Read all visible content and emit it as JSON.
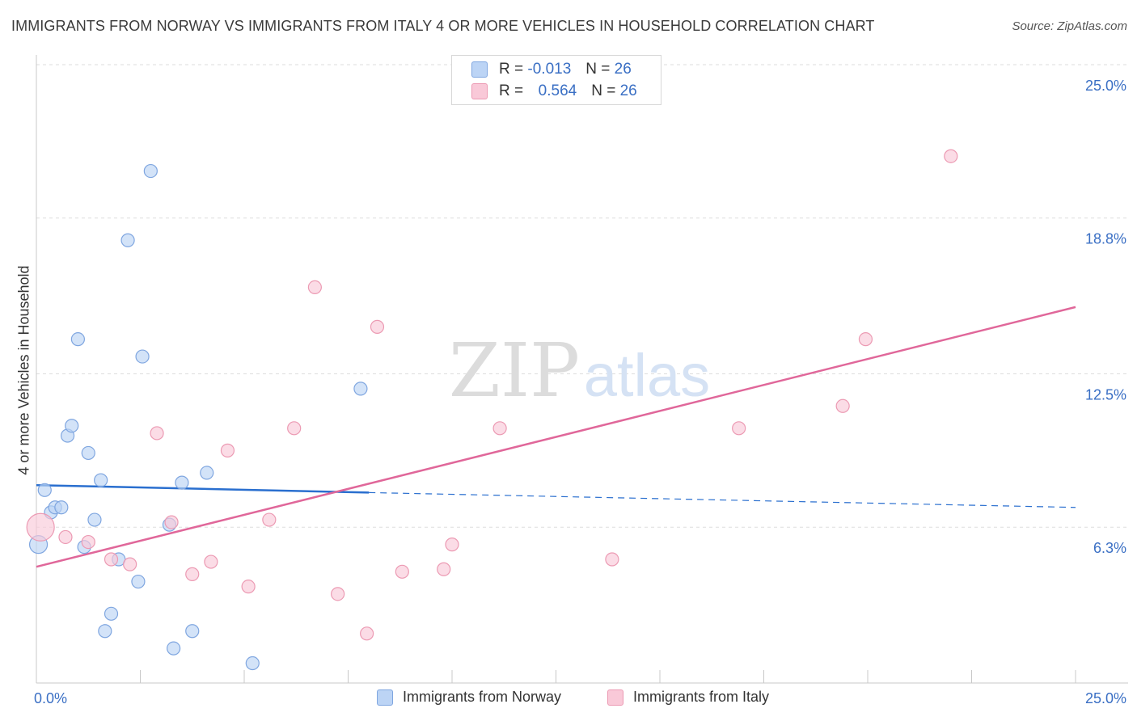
{
  "header": {
    "title": "IMMIGRANTS FROM NORWAY VS IMMIGRANTS FROM ITALY 4 OR MORE VEHICLES IN HOUSEHOLD CORRELATION CHART",
    "source": "Source: ZipAtlas.com"
  },
  "watermark": {
    "zip": "ZIP",
    "atlas": "atlas"
  },
  "stats": {
    "norway": {
      "r_label": "R =",
      "r_value": "-0.013",
      "n_label": "N =",
      "n_value": "26"
    },
    "italy": {
      "r_label": "R =",
      "r_value": "0.564",
      "n_label": "N =",
      "n_value": "26"
    }
  },
  "legend": {
    "norway": "Immigrants from Norway",
    "italy": "Immigrants from Italy"
  },
  "colors": {
    "norway_fill": "#bcd4f5",
    "norway_stroke": "#7fa6e0",
    "norway_line": "#2a6fcf",
    "italy_fill": "#f9c9d8",
    "italy_stroke": "#ec9ab3",
    "italy_line": "#e0679a",
    "axis_text": "#3a6fc4",
    "grid": "#dddddd"
  },
  "chart_data": {
    "type": "scatter",
    "title": "IMMIGRANTS FROM NORWAY VS IMMIGRANTS FROM ITALY 4 OR MORE VEHICLES IN HOUSEHOLD CORRELATION CHART",
    "xlabel": "",
    "ylabel": "4 or more Vehicles in Household",
    "xlim": [
      0,
      25
    ],
    "ylim": [
      0,
      25
    ],
    "x_tick_labels": [
      {
        "value": 0,
        "label": "0.0%"
      },
      {
        "value": 25,
        "label": "25.0%"
      }
    ],
    "y_ticks": [
      {
        "value": 6.3,
        "label": "6.3%"
      },
      {
        "value": 12.5,
        "label": "12.5%"
      },
      {
        "value": 18.8,
        "label": "18.8%"
      },
      {
        "value": 25.0,
        "label": "25.0%"
      }
    ],
    "grid": true,
    "series": [
      {
        "name": "Immigrants from Norway",
        "points": [
          {
            "x": 0.05,
            "y": 5.6
          },
          {
            "x": 0.2,
            "y": 7.8
          },
          {
            "x": 0.35,
            "y": 6.9
          },
          {
            "x": 0.45,
            "y": 7.1
          },
          {
            "x": 0.6,
            "y": 7.1
          },
          {
            "x": 0.75,
            "y": 10.0
          },
          {
            "x": 0.85,
            "y": 10.4
          },
          {
            "x": 1.0,
            "y": 13.9
          },
          {
            "x": 1.15,
            "y": 5.5
          },
          {
            "x": 1.25,
            "y": 9.3
          },
          {
            "x": 1.4,
            "y": 6.6
          },
          {
            "x": 1.55,
            "y": 8.2
          },
          {
            "x": 1.65,
            "y": 2.1
          },
          {
            "x": 1.8,
            "y": 2.8
          },
          {
            "x": 1.98,
            "y": 5.0
          },
          {
            "x": 2.2,
            "y": 17.9
          },
          {
            "x": 2.45,
            "y": 4.1
          },
          {
            "x": 2.55,
            "y": 13.2
          },
          {
            "x": 2.75,
            "y": 20.7
          },
          {
            "x": 3.2,
            "y": 6.4
          },
          {
            "x": 3.3,
            "y": 1.4
          },
          {
            "x": 3.5,
            "y": 8.1
          },
          {
            "x": 3.75,
            "y": 2.1
          },
          {
            "x": 4.1,
            "y": 8.5
          },
          {
            "x": 5.2,
            "y": 0.8
          },
          {
            "x": 7.8,
            "y": 11.9
          }
        ],
        "trend": {
          "x_start": 0,
          "y_start": 8.0,
          "x_solid_end": 8.0,
          "y_solid_end": 7.7,
          "x_end": 25.0,
          "y_end": 7.1
        }
      },
      {
        "name": "Immigrants from Italy",
        "points": [
          {
            "x": 0.1,
            "y": 6.3
          },
          {
            "x": 0.7,
            "y": 5.9
          },
          {
            "x": 1.25,
            "y": 5.7
          },
          {
            "x": 1.8,
            "y": 5.0
          },
          {
            "x": 2.25,
            "y": 4.8
          },
          {
            "x": 2.9,
            "y": 10.1
          },
          {
            "x": 3.25,
            "y": 6.5
          },
          {
            "x": 3.75,
            "y": 4.4
          },
          {
            "x": 4.2,
            "y": 4.9
          },
          {
            "x": 4.6,
            "y": 9.4
          },
          {
            "x": 5.1,
            "y": 3.9
          },
          {
            "x": 5.6,
            "y": 6.6
          },
          {
            "x": 6.2,
            "y": 10.3
          },
          {
            "x": 6.7,
            "y": 16.0
          },
          {
            "x": 7.25,
            "y": 3.6
          },
          {
            "x": 7.95,
            "y": 2.0
          },
          {
            "x": 8.2,
            "y": 14.4
          },
          {
            "x": 8.8,
            "y": 4.5
          },
          {
            "x": 9.8,
            "y": 4.6
          },
          {
            "x": 10.0,
            "y": 5.6
          },
          {
            "x": 11.15,
            "y": 10.3
          },
          {
            "x": 13.85,
            "y": 5.0
          },
          {
            "x": 16.9,
            "y": 10.3
          },
          {
            "x": 19.4,
            "y": 11.2
          },
          {
            "x": 19.95,
            "y": 13.9
          },
          {
            "x": 22.0,
            "y": 21.3
          }
        ],
        "trend": {
          "x_start": 0,
          "y_start": 4.7,
          "x_end": 25.0,
          "y_end": 15.2
        }
      }
    ]
  }
}
